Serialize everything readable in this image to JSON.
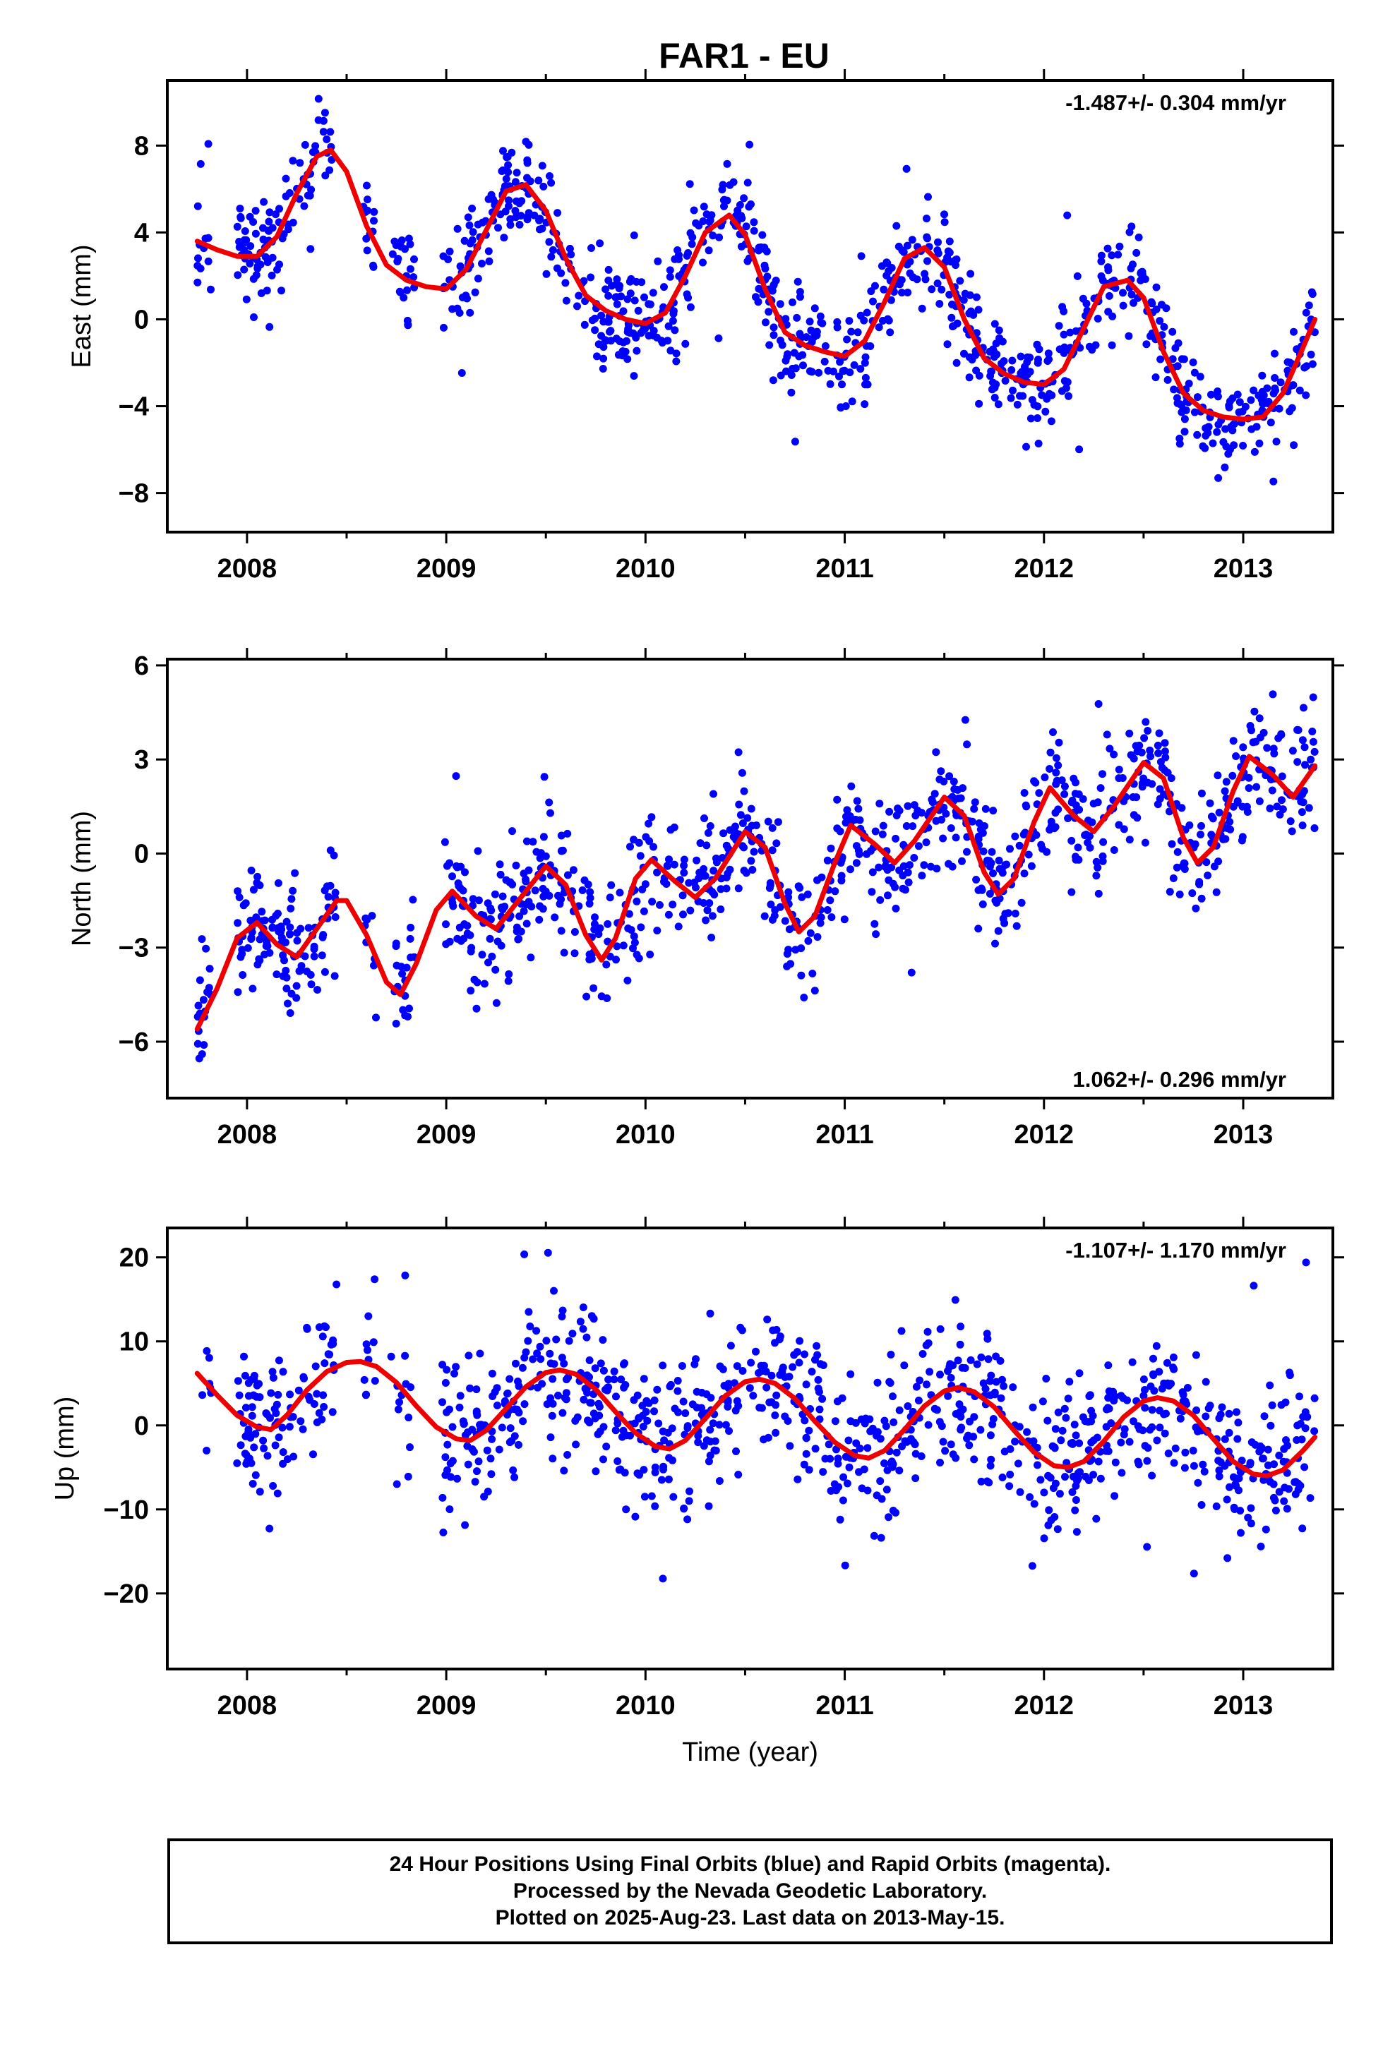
{
  "title": "FAR1 - EU",
  "footer": {
    "line1": "24 Hour Positions Using Final Orbits (blue) and Rapid Orbits (magenta).",
    "line2": "Processed by the Nevada Geodetic Laboratory.",
    "line3": "Plotted on 2025-Aug-23. Last data on 2013-May-15."
  },
  "colors": {
    "points": "#0000ff",
    "fit": "#ee0000",
    "axis": "#000000"
  },
  "chart_data": [
    {
      "type": "scatter",
      "panel": "east",
      "ylabel": "East (mm)",
      "xlabel": "",
      "rate_label": "-1.487+/- 0.304 mm/yr",
      "rate_position": "top-right",
      "xlim": [
        2007.6,
        2013.45
      ],
      "ylim": [
        -9.8,
        11.0
      ],
      "x_ticks": [
        2008,
        2009,
        2010,
        2011,
        2012,
        2013
      ],
      "x_tick_labels": [
        "2008",
        "2009",
        "2010",
        "2011",
        "2012",
        "2013"
      ],
      "y_ticks": [
        8,
        4,
        0,
        -4,
        -8
      ],
      "y_tick_labels": [
        "8",
        "4",
        "0",
        "−4",
        "−8"
      ],
      "data_gaps": [
        [
          2007.82,
          2007.95
        ],
        [
          2008.45,
          2008.58
        ],
        [
          2008.65,
          2008.72
        ],
        [
          2008.84,
          2008.98
        ]
      ],
      "fit_curve": {
        "x": [
          2007.75,
          2007.85,
          2007.95,
          2008.05,
          2008.15,
          2008.25,
          2008.35,
          2008.42,
          2008.5,
          2008.6,
          2008.7,
          2008.8,
          2008.9,
          2009.0,
          2009.1,
          2009.2,
          2009.3,
          2009.4,
          2009.5,
          2009.6,
          2009.7,
          2009.8,
          2009.9,
          2010.0,
          2010.1,
          2010.2,
          2010.3,
          2010.42,
          2010.5,
          2010.6,
          2010.7,
          2010.8,
          2010.9,
          2011.0,
          2011.1,
          2011.2,
          2011.3,
          2011.4,
          2011.5,
          2011.6,
          2011.7,
          2011.8,
          2011.9,
          2012.0,
          2012.1,
          2012.2,
          2012.3,
          2012.42,
          2012.5,
          2012.6,
          2012.7,
          2012.8,
          2012.9,
          2013.0,
          2013.1,
          2013.2,
          2013.3,
          2013.36
        ],
        "y": [
          3.6,
          3.2,
          2.9,
          2.9,
          3.8,
          5.8,
          7.5,
          7.8,
          6.8,
          4.3,
          2.5,
          1.8,
          1.5,
          1.4,
          2.3,
          4.1,
          5.9,
          6.2,
          5.0,
          2.8,
          1.1,
          0.4,
          0.0,
          -0.2,
          0.3,
          2.0,
          4.0,
          4.8,
          3.9,
          1.4,
          -0.6,
          -1.2,
          -1.5,
          -1.7,
          -1.0,
          0.8,
          2.8,
          3.3,
          2.4,
          0.0,
          -1.8,
          -2.5,
          -2.9,
          -3.0,
          -2.3,
          -0.4,
          1.5,
          1.8,
          1.0,
          -1.5,
          -3.4,
          -4.2,
          -4.5,
          -4.6,
          -4.5,
          -3.4,
          -1.3,
          0.0
        ]
      },
      "scatter_sampling": {
        "n": 1000,
        "noise_sd_mm": 1.25,
        "seed": 11
      }
    },
    {
      "type": "scatter",
      "panel": "north",
      "ylabel": "North (mm)",
      "xlabel": "",
      "rate_label": "1.062+/- 0.296 mm/yr",
      "rate_position": "bottom-right",
      "xlim": [
        2007.6,
        2013.45
      ],
      "ylim": [
        -7.8,
        6.2
      ],
      "x_ticks": [
        2008,
        2009,
        2010,
        2011,
        2012,
        2013
      ],
      "x_tick_labels": [
        "2008",
        "2009",
        "2010",
        "2011",
        "2012",
        "2013"
      ],
      "y_ticks": [
        6,
        3,
        0,
        -3,
        -6
      ],
      "y_tick_labels": [
        "6",
        "3",
        "0",
        "−3",
        "−6"
      ],
      "data_gaps": [
        [
          2007.82,
          2007.95
        ],
        [
          2008.45,
          2008.58
        ],
        [
          2008.65,
          2008.72
        ],
        [
          2008.84,
          2008.98
        ]
      ],
      "fit_curve": {
        "x": [
          2007.75,
          2007.85,
          2007.95,
          2008.05,
          2008.15,
          2008.25,
          2008.35,
          2008.45,
          2008.5,
          2008.6,
          2008.7,
          2008.77,
          2008.85,
          2008.95,
          2009.03,
          2009.15,
          2009.25,
          2009.35,
          2009.5,
          2009.6,
          2009.7,
          2009.78,
          2009.85,
          2009.95,
          2010.03,
          2010.15,
          2010.25,
          2010.35,
          2010.5,
          2010.6,
          2010.7,
          2010.77,
          2010.85,
          2010.95,
          2011.03,
          2011.15,
          2011.25,
          2011.35,
          2011.5,
          2011.6,
          2011.7,
          2011.77,
          2011.85,
          2011.95,
          2012.03,
          2012.15,
          2012.25,
          2012.35,
          2012.5,
          2012.6,
          2012.7,
          2012.77,
          2012.85,
          2012.95,
          2013.03,
          2013.15,
          2013.25,
          2013.36
        ],
        "y": [
          -5.6,
          -4.3,
          -2.7,
          -2.2,
          -2.9,
          -3.3,
          -2.4,
          -1.5,
          -1.5,
          -2.6,
          -4.1,
          -4.5,
          -3.5,
          -1.8,
          -1.2,
          -2.0,
          -2.4,
          -1.6,
          -0.4,
          -1.0,
          -2.6,
          -3.4,
          -2.7,
          -0.8,
          -0.2,
          -0.9,
          -1.4,
          -0.8,
          0.7,
          0.2,
          -1.6,
          -2.5,
          -2.0,
          -0.3,
          0.9,
          0.3,
          -0.3,
          0.4,
          1.8,
          1.2,
          -0.6,
          -1.3,
          -0.8,
          1.0,
          2.1,
          1.2,
          0.7,
          1.5,
          2.9,
          2.4,
          0.5,
          -0.3,
          0.2,
          2.0,
          3.1,
          2.5,
          1.8,
          2.8
        ]
      },
      "scatter_sampling": {
        "n": 1000,
        "noise_sd_mm": 1.0,
        "seed": 23
      }
    },
    {
      "type": "scatter",
      "panel": "up",
      "ylabel": "Up (mm)",
      "xlabel": "Time (year)",
      "rate_label": "-1.107+/- 1.170 mm/yr",
      "rate_position": "top-right",
      "xlim": [
        2007.6,
        2013.45
      ],
      "ylim": [
        -29.0,
        23.5
      ],
      "x_ticks": [
        2008,
        2009,
        2010,
        2011,
        2012,
        2013
      ],
      "x_tick_labels": [
        "2008",
        "2009",
        "2010",
        "2011",
        "2012",
        "2013"
      ],
      "y_ticks": [
        20,
        10,
        0,
        -10,
        -20
      ],
      "y_tick_labels": [
        "20",
        "10",
        "0",
        "−10",
        "−20"
      ],
      "data_gaps": [
        [
          2007.82,
          2007.95
        ],
        [
          2008.45,
          2008.58
        ],
        [
          2008.65,
          2008.72
        ],
        [
          2008.84,
          2008.98
        ]
      ],
      "fit_curve": {
        "x": [
          2007.75,
          2007.85,
          2007.95,
          2008.05,
          2008.12,
          2008.2,
          2008.3,
          2008.4,
          2008.5,
          2008.57,
          2008.65,
          2008.75,
          2008.85,
          2008.95,
          2009.05,
          2009.12,
          2009.2,
          2009.3,
          2009.4,
          2009.5,
          2009.57,
          2009.65,
          2009.75,
          2009.85,
          2009.95,
          2010.05,
          2010.12,
          2010.2,
          2010.3,
          2010.4,
          2010.5,
          2010.57,
          2010.65,
          2010.75,
          2010.85,
          2010.95,
          2011.05,
          2011.12,
          2011.2,
          2011.3,
          2011.4,
          2011.5,
          2011.57,
          2011.65,
          2011.75,
          2011.85,
          2011.95,
          2012.05,
          2012.12,
          2012.2,
          2012.3,
          2012.4,
          2012.5,
          2012.57,
          2012.65,
          2012.75,
          2012.85,
          2012.95,
          2013.05,
          2013.12,
          2013.2,
          2013.3,
          2013.36
        ],
        "y": [
          6.2,
          3.6,
          1.2,
          -0.2,
          -0.5,
          1.2,
          4.2,
          6.4,
          7.5,
          7.6,
          7.0,
          5.1,
          2.3,
          -0.2,
          -1.6,
          -1.8,
          -0.6,
          2.0,
          4.6,
          6.3,
          6.6,
          6.1,
          4.3,
          1.6,
          -0.9,
          -2.5,
          -2.8,
          -1.8,
          0.8,
          3.5,
          5.2,
          5.5,
          5.0,
          3.2,
          0.5,
          -2.0,
          -3.6,
          -3.9,
          -3.0,
          -0.5,
          2.3,
          4.1,
          4.5,
          4.0,
          2.2,
          -0.6,
          -3.2,
          -4.8,
          -5.0,
          -4.3,
          -1.9,
          1.0,
          2.9,
          3.3,
          2.9,
          1.2,
          -1.6,
          -4.3,
          -5.8,
          -6.0,
          -5.3,
          -3.0,
          -1.4
        ]
      },
      "scatter_sampling": {
        "n": 1000,
        "noise_sd_mm": 4.6,
        "seed": 37
      }
    }
  ]
}
